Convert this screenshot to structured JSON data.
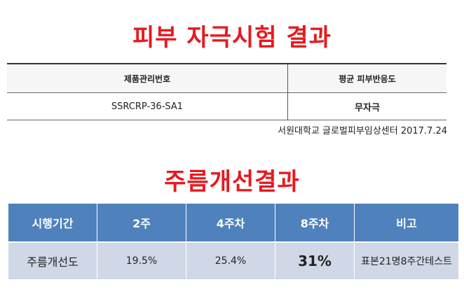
{
  "title1": "피부 자극시험 결과",
  "scan_table": {
    "headers": [
      "제품관리번호",
      "평균 피부반응도"
    ],
    "row": [
      "SSRCRP-36-SA1",
      "무자극"
    ]
  },
  "source": "서원대학교 글로벌피부임상센터 2017.7.24",
  "title2": "주름개선결과",
  "results_table": {
    "headers": [
      "시행기간",
      "2주",
      "4주차",
      "8주차",
      "비고"
    ],
    "row": [
      "주름개선도",
      "19.5%",
      "25.4%",
      "31%",
      "표본21명8주간테스트"
    ]
  },
  "colors": {
    "title_red": "#e8191e",
    "header_blue": "#4f81bd",
    "row_blue": "#d0d8e8"
  }
}
